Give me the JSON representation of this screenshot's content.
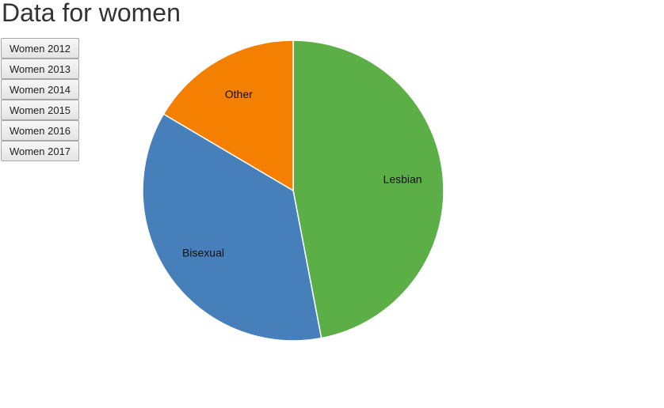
{
  "page": {
    "title": "Data for women"
  },
  "buttons": [
    {
      "label": "Women 2012"
    },
    {
      "label": "Women 2013"
    },
    {
      "label": "Women 2014"
    },
    {
      "label": "Women 2015"
    },
    {
      "label": "Women 2016"
    },
    {
      "label": "Women 2017"
    }
  ],
  "chart_data": {
    "type": "pie",
    "categories": [
      "Lesbian",
      "Bisexual",
      "Other"
    ],
    "values": [
      47.0,
      36.5,
      16.5
    ],
    "colors": [
      "#5cae47",
      "#467fba",
      "#f57f00"
    ],
    "slice_border_color": "#ffffff",
    "legend": "none",
    "labels_on_slices": true
  }
}
